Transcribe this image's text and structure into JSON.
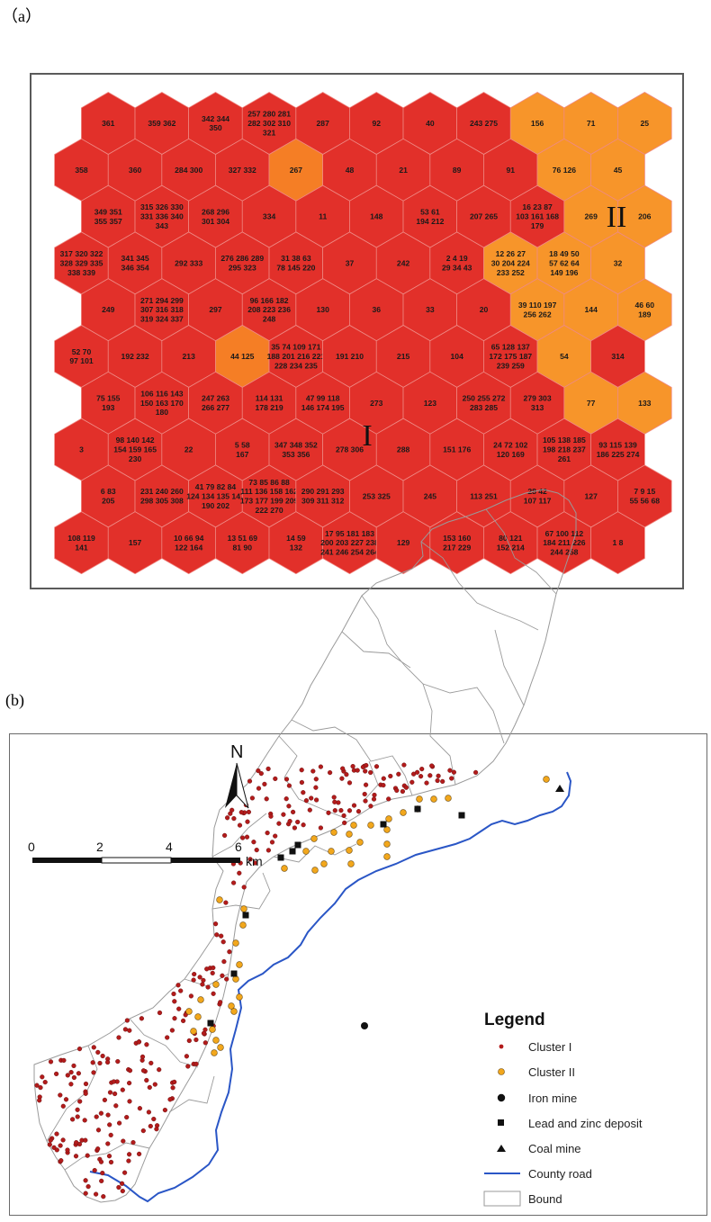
{
  "panel_a": {
    "label": "（a）",
    "colors": {
      "cluster1": "#e2302a",
      "cluster2": "#f7952a",
      "cluster2_alt": "#f57e25",
      "edge": "#ef8a85"
    },
    "region_labels": [
      "I",
      "II"
    ],
    "hex_rows": [
      {
        "offset": 1,
        "cells": [
          {
            "t": "361",
            "c": 1
          },
          {
            "t": "359 362",
            "c": 1
          },
          {
            "t": "342 344 350",
            "c": 1
          },
          {
            "t": "257 280 281 282 302 310 321",
            "c": 1
          },
          {
            "t": "287",
            "c": 1
          },
          {
            "t": "92",
            "c": 1
          },
          {
            "t": "40",
            "c": 1
          },
          {
            "t": "243 275",
            "c": 1
          },
          {
            "t": "156",
            "c": 2
          },
          {
            "t": "71",
            "c": 2
          },
          {
            "t": "25",
            "c": 2
          }
        ]
      },
      {
        "offset": 0,
        "cells": [
          {
            "t": "358",
            "c": 1
          },
          {
            "t": "360",
            "c": 1
          },
          {
            "t": "284 300",
            "c": 1
          },
          {
            "t": "327 332",
            "c": 1
          },
          {
            "t": "267",
            "c": 3
          },
          {
            "t": "48",
            "c": 1
          },
          {
            "t": "21",
            "c": 1
          },
          {
            "t": "89",
            "c": 1
          },
          {
            "t": "91",
            "c": 1
          },
          {
            "t": "76 126",
            "c": 2
          },
          {
            "t": "45",
            "c": 2
          }
        ]
      },
      {
        "offset": 1,
        "cells": [
          {
            "t": "349 351 355 357",
            "c": 1
          },
          {
            "t": "315 326 330 331 336 340 343",
            "c": 1
          },
          {
            "t": "268 296 301 304",
            "c": 1
          },
          {
            "t": "334",
            "c": 1
          },
          {
            "t": "11",
            "c": 1
          },
          {
            "t": "148",
            "c": 1
          },
          {
            "t": "53 61 194 212",
            "c": 1
          },
          {
            "t": "207 265",
            "c": 1
          },
          {
            "t": "16 23 87 103 161 168 179",
            "c": 1
          },
          {
            "t": "269",
            "c": 2
          },
          {
            "t": "206",
            "c": 2
          }
        ]
      },
      {
        "offset": 0,
        "cells": [
          {
            "t": "317 320 322 328 329 335 338 339",
            "c": 1
          },
          {
            "t": "341 345 346 354",
            "c": 1
          },
          {
            "t": "292 333",
            "c": 1
          },
          {
            "t": "276 286 289 295 323",
            "c": 1
          },
          {
            "t": "31 38 63 78 145 220",
            "c": 1
          },
          {
            "t": "37",
            "c": 1
          },
          {
            "t": "242",
            "c": 1
          },
          {
            "t": "2 4 19 29 34 43",
            "c": 1
          },
          {
            "t": "12 26 27 30 204 224 233 252",
            "c": 2
          },
          {
            "t": "18 49 50 57 62 64 149 196",
            "c": 2
          },
          {
            "t": "32",
            "c": 2
          }
        ]
      },
      {
        "offset": 1,
        "cells": [
          {
            "t": "249",
            "c": 1
          },
          {
            "t": "271 294 299 307 316 318 319 324 337",
            "c": 1
          },
          {
            "t": "297",
            "c": 1
          },
          {
            "t": "96 166 182 208 223 236 248",
            "c": 1
          },
          {
            "t": "130",
            "c": 1
          },
          {
            "t": "36",
            "c": 1
          },
          {
            "t": "33",
            "c": 1
          },
          {
            "t": "20",
            "c": 1
          },
          {
            "t": "39 110 197 256 262",
            "c": 2
          },
          {
            "t": "144",
            "c": 2
          },
          {
            "t": "46 60 189",
            "c": 2
          }
        ]
      },
      {
        "offset": 0,
        "cells": [
          {
            "t": "52 70 97 101",
            "c": 1
          },
          {
            "t": "192 232",
            "c": 1
          },
          {
            "t": "213",
            "c": 1
          },
          {
            "t": "44 125",
            "c": 3
          },
          {
            "t": "35 74 109 171 188 201 216 221 228 234 235",
            "c": 1
          },
          {
            "t": "191 210",
            "c": 1
          },
          {
            "t": "215",
            "c": 1
          },
          {
            "t": "104",
            "c": 1
          },
          {
            "t": "65 128 137 172 175 187 239 259",
            "c": 1
          },
          {
            "t": "54",
            "c": 2
          },
          {
            "t": "314",
            "c": 1
          }
        ]
      },
      {
        "offset": 1,
        "cells": [
          {
            "t": "75 155 193",
            "c": 1
          },
          {
            "t": "106 116 143 150 163 170 180",
            "c": 1
          },
          {
            "t": "247 263 266 277",
            "c": 1
          },
          {
            "t": "114 131 178 219",
            "c": 1
          },
          {
            "t": "47 99 118 146 174 195",
            "c": 1
          },
          {
            "t": "273",
            "c": 1
          },
          {
            "t": "123",
            "c": 1
          },
          {
            "t": "250 255 272 283 285",
            "c": 1
          },
          {
            "t": "279 303 313",
            "c": 1
          },
          {
            "t": "77",
            "c": 2
          },
          {
            "t": "133",
            "c": 2
          }
        ]
      },
      {
        "offset": 0,
        "cells": [
          {
            "t": "3",
            "c": 1
          },
          {
            "t": "98 140 142 154 159 165 230",
            "c": 1
          },
          {
            "t": "22",
            "c": 1
          },
          {
            "t": "5 58 167",
            "c": 1
          },
          {
            "t": "347 348 352 353 356",
            "c": 1
          },
          {
            "t": "278 306",
            "c": 1
          },
          {
            "t": "288",
            "c": 1
          },
          {
            "t": "151 176",
            "c": 1
          },
          {
            "t": "24 72 102 120 169",
            "c": 1
          },
          {
            "t": "105 138 185 198 218 237 261",
            "c": 1
          },
          {
            "t": "93 115 139 186 225 274",
            "c": 1
          }
        ]
      },
      {
        "offset": 1,
        "cells": [
          {
            "t": "6 83 205",
            "c": 1
          },
          {
            "t": "231 240 260 298 305 308",
            "c": 1
          },
          {
            "t": "41 79 82 84 124 134 135 147 190 202",
            "c": 1
          },
          {
            "t": "73 85 86 88 111 136 158 162 173 177 199 209 222 270",
            "c": 1
          },
          {
            "t": "290 291 293 309 311 312",
            "c": 1
          },
          {
            "t": "253 325",
            "c": 1
          },
          {
            "t": "245",
            "c": 1
          },
          {
            "t": "113 251",
            "c": 1
          },
          {
            "t": "28 42 107 117",
            "c": 1
          },
          {
            "t": "127",
            "c": 1
          },
          {
            "t": "7 9 15 55 56 68",
            "c": 1
          }
        ]
      },
      {
        "offset": 0,
        "cells": [
          {
            "t": "108 119 141",
            "c": 1
          },
          {
            "t": "157",
            "c": 1
          },
          {
            "t": "10 66 94 122 164",
            "c": 1
          },
          {
            "t": "13 51 69 81 90",
            "c": 1
          },
          {
            "t": "14 59 132",
            "c": 1
          },
          {
            "t": "17 95 181 183 200 203 227 238 241 246 254 264",
            "c": 1
          },
          {
            "t": "129",
            "c": 1
          },
          {
            "t": "153 160 217 229",
            "c": 1
          },
          {
            "t": "80 121 152 214",
            "c": 1
          },
          {
            "t": "67 100 112 184 211 226 244 258",
            "c": 1
          },
          {
            "t": "1 8",
            "c": 1
          }
        ]
      }
    ]
  },
  "panel_b": {
    "label": "(b)",
    "north_label": "N",
    "scale": {
      "ticks": [
        "0",
        "2",
        "4",
        "6"
      ],
      "unit": "km"
    },
    "legend": {
      "title": "Legend",
      "items": [
        {
          "label": "Cluster I",
          "symbol": "dot-red"
        },
        {
          "label": "Cluster II",
          "symbol": "dot-orange"
        },
        {
          "label": "Iron mine",
          "symbol": "circle-black"
        },
        {
          "label": "Lead and zinc deposit",
          "symbol": "square-black"
        },
        {
          "label": "Coal mine",
          "symbol": "triangle-black"
        },
        {
          "label": "County road",
          "symbol": "line-blue"
        },
        {
          "label": "Bound",
          "symbol": "box-outline"
        }
      ]
    },
    "colors": {
      "cluster1": "#b31b1b",
      "cluster2": "#f2a71c",
      "road": "#2a56c6",
      "bound": "#9a9a9a"
    }
  }
}
